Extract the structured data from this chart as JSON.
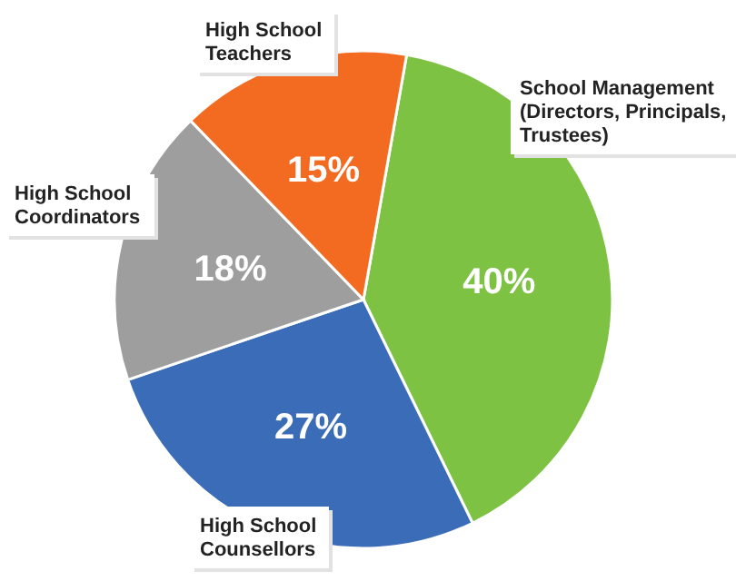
{
  "chart_data": {
    "type": "pie",
    "categories": [
      "School Management (Directors, Principals, Trustees)",
      "High School Counsellors",
      "High School Coordinators",
      "High School Teachers"
    ],
    "values": [
      40,
      27,
      18,
      15
    ],
    "colors": [
      "#7dc243",
      "#3b6cb7",
      "#9e9e9e",
      "#f26b21"
    ],
    "value_labels": [
      "40%",
      "27%",
      "18%",
      "15%"
    ]
  }
}
